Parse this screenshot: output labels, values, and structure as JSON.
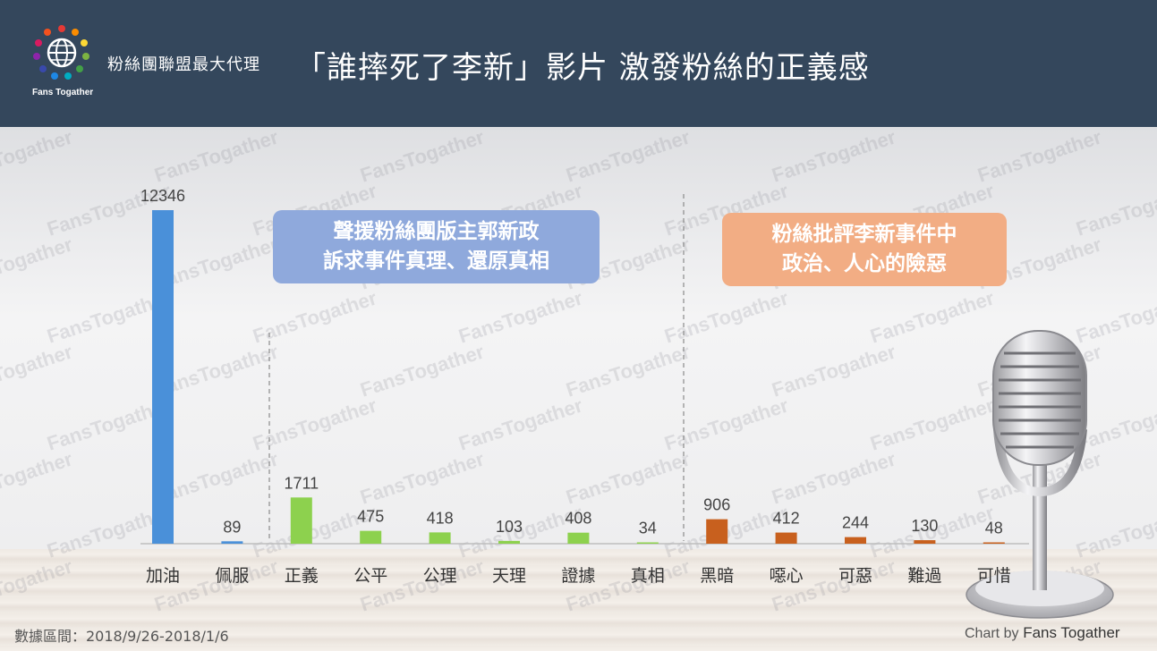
{
  "header": {
    "logo_text": "Fans Togather",
    "brand": "粉絲團聯盟最大代理",
    "title": "「誰摔死了李新」影片 激發粉絲的正義感"
  },
  "watermark_text": "FansTogather",
  "callouts": {
    "blue": {
      "line1": "聲援粉絲團版主郭新政",
      "line2": "訴求事件真理、還原真相"
    },
    "orange": {
      "line1": "粉絲批評李新事件中",
      "line2": "政治、人心的險惡"
    }
  },
  "footer": {
    "range": "數據區間：2018/9/26-2018/1/6",
    "credit_prefix": "Chart by",
    "credit_name": "Fans Togather"
  },
  "colors": {
    "header_bg": "#34475c",
    "bar_blue": "#4a90d9",
    "bar_green": "#8dd14e",
    "bar_orange": "#c8601e",
    "callout_blue": "#8fa9dc",
    "callout_orange": "#f2ad84"
  },
  "chart_data": {
    "type": "bar",
    "categories": [
      "加油",
      "佩服",
      "正義",
      "公平",
      "公理",
      "天理",
      "證據",
      "真相",
      "黑暗",
      "噁心",
      "可惡",
      "難過",
      "可惜"
    ],
    "values": [
      12346,
      89,
      1711,
      475,
      418,
      103,
      408,
      34,
      906,
      412,
      244,
      130,
      48
    ],
    "bar_colors": [
      "blue",
      "blue",
      "green",
      "green",
      "green",
      "green",
      "green",
      "green",
      "orange",
      "orange",
      "orange",
      "orange",
      "orange"
    ],
    "title": "",
    "xlabel": "",
    "ylabel": "",
    "ylim": [
      0,
      12346
    ],
    "grid": false,
    "legend": "none"
  }
}
